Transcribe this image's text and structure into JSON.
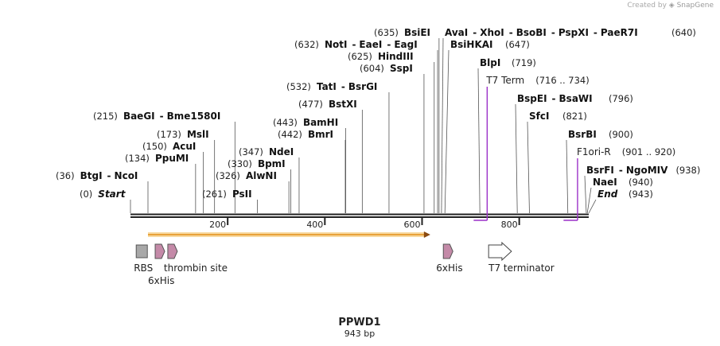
{
  "brand": {
    "created_by": "Created by",
    "name": "SnapGene"
  },
  "sequence": {
    "name": "PPWD1",
    "length_label": "943 bp",
    "length": 943
  },
  "axis_ticks": [
    {
      "label": "200",
      "value": 200
    },
    {
      "label": "400",
      "value": 400
    },
    {
      "label": "600",
      "value": 600
    },
    {
      "label": "800",
      "value": 800
    }
  ],
  "sites": [
    {
      "pos_label": "(0)",
      "names": [
        "Start"
      ],
      "italic": true,
      "pos": 0
    },
    {
      "pos_label": "(36)",
      "names": [
        "BtgI",
        "NcoI"
      ],
      "pos": 36
    },
    {
      "pos_label": "(134)",
      "names": [
        "PpuMI"
      ],
      "pos": 134
    },
    {
      "pos_label": "(150)",
      "names": [
        "AcuI"
      ],
      "pos": 150
    },
    {
      "pos_label": "(173)",
      "names": [
        "MslI"
      ],
      "pos": 173
    },
    {
      "pos_label": "(215)",
      "names": [
        "BaeGI",
        "Bme1580I"
      ],
      "pos": 215
    },
    {
      "pos_label": "(261)",
      "names": [
        "PsII"
      ],
      "pos": 261
    },
    {
      "pos_label": "(326)",
      "names": [
        "AlwNI"
      ],
      "pos": 326
    },
    {
      "pos_label": "(330)",
      "names": [
        "BpmI"
      ],
      "pos": 330
    },
    {
      "pos_label": "(347)",
      "names": [
        "NdeI"
      ],
      "pos": 347
    },
    {
      "pos_label": "(442)",
      "names": [
        "BmrI"
      ],
      "pos": 442
    },
    {
      "pos_label": "(443)",
      "names": [
        "BamHI"
      ],
      "pos": 443
    },
    {
      "pos_label": "(477)",
      "names": [
        "BstXI"
      ],
      "pos": 477
    },
    {
      "pos_label": "(532)",
      "names": [
        "TatI",
        "BsrGI"
      ],
      "pos": 532
    },
    {
      "pos_label": "(604)",
      "names": [
        "SspI"
      ],
      "pos": 604
    },
    {
      "pos_label": "(625)",
      "names": [
        "HindIII"
      ],
      "pos": 625
    },
    {
      "pos_label": "(632)",
      "names": [
        "NotI",
        "EaeI",
        "EagI"
      ],
      "pos": 632
    },
    {
      "pos_label": "(635)",
      "names": [
        "BsiEI"
      ],
      "pos": 635
    },
    {
      "pos_label": "(640)",
      "names": [
        "AvaI",
        "XhoI",
        "BsoBI",
        "PspXI",
        "PaeR7I"
      ],
      "pos": 640,
      "label_after": true
    },
    {
      "pos_label": "(647)",
      "names": [
        "BsiHKAI"
      ],
      "pos": 647,
      "label_after": true
    },
    {
      "pos_label": "(719)",
      "names": [
        "BlpI"
      ],
      "pos": 719,
      "label_after": true
    },
    {
      "pos_label": "(796)",
      "names": [
        "BspEI",
        "BsaWI"
      ],
      "pos": 796,
      "label_after": true
    },
    {
      "pos_label": "(821)",
      "names": [
        "SfcI"
      ],
      "pos": 821,
      "label_after": true
    },
    {
      "pos_label": "(900)",
      "names": [
        "BsrBI"
      ],
      "pos": 900,
      "label_after": true
    },
    {
      "pos_label": "(938)",
      "names": [
        "BsrFI",
        "NgoMIV"
      ],
      "pos": 938,
      "label_after": true
    },
    {
      "pos_label": "(940)",
      "names": [
        "NaeI"
      ],
      "pos": 940,
      "label_after": true
    },
    {
      "pos_label": "(943)",
      "names": [
        "End"
      ],
      "italic": true,
      "pos": 943,
      "label_after": true
    }
  ],
  "primers": [
    {
      "name": "T7 Term",
      "range_label": "(716 .. 734)",
      "start": 716,
      "end": 734,
      "color": "#9b30c8"
    },
    {
      "name": "F1ori-R",
      "range_label": "(901 .. 920)",
      "start": 901,
      "end": 920,
      "color": "#9b30c8"
    }
  ],
  "orf": {
    "start": 36,
    "end": 617,
    "color": "#e8a23a",
    "fill": "#f7d9a0"
  },
  "features": [
    {
      "name": "RBS",
      "type": "box",
      "pos": 20,
      "color": "#a8a8a8"
    },
    {
      "name": "6xHis",
      "type": "tag",
      "pos": 59,
      "color": "#c48aa8"
    },
    {
      "name": "thrombin site",
      "type": "tag",
      "pos": 85,
      "color": "#c48aa8"
    },
    {
      "name": "6xHis",
      "type": "tag",
      "pos": 652,
      "color": "#c48aa8"
    },
    {
      "name": "T7 terminator",
      "type": "arrow",
      "start": 737,
      "end": 784,
      "color": "#ffffff"
    }
  ]
}
